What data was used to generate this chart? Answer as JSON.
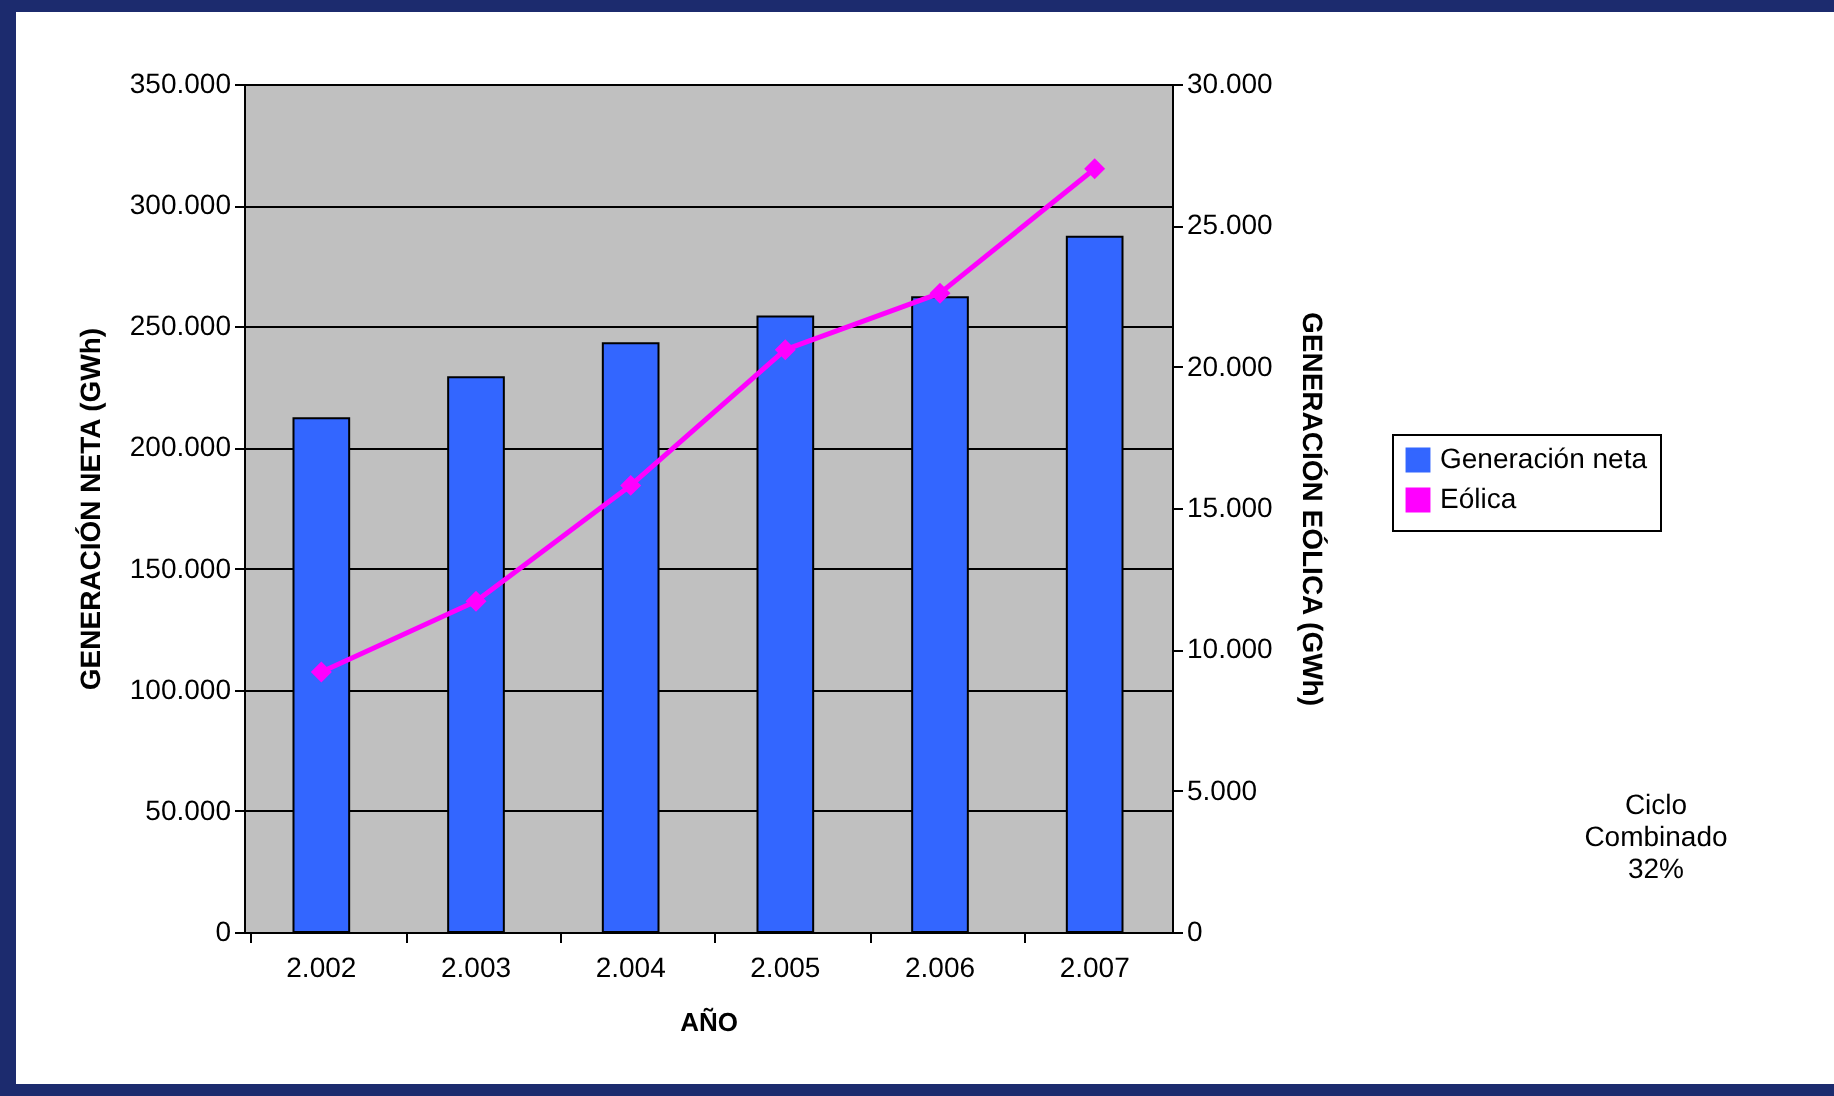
{
  "chart_data": {
    "type": "bar",
    "categories": [
      "2.002",
      "2.003",
      "2.004",
      "2.005",
      "2.006",
      "2.007"
    ],
    "xlabel": "AÑO",
    "ylabel": "GENERACIÓN NETA (GWh)",
    "y2label": "GENERACIÓN EÓLICA (GWh)",
    "series": [
      {
        "name": "Generación neta",
        "color": "#3366ff",
        "values": [
          212000,
          229000,
          243000,
          254000,
          262000,
          287000
        ]
      },
      {
        "name": "Eólica",
        "type": "line",
        "axis": "y2",
        "color": "#ff00ff",
        "values": [
          9200,
          11700,
          15800,
          20600,
          22600,
          27000
        ]
      }
    ],
    "ylim": [
      0,
      350000
    ],
    "yticks": [
      {
        "value": 0,
        "label": "0"
      },
      {
        "value": 50000,
        "label": "50.000"
      },
      {
        "value": 100000,
        "label": "100.000"
      },
      {
        "value": 150000,
        "label": "150.000"
      },
      {
        "value": 200000,
        "label": "200.000"
      },
      {
        "value": 250000,
        "label": "250.000"
      },
      {
        "value": 300000,
        "label": "300.000"
      },
      {
        "value": 350000,
        "label": "350.000"
      }
    ],
    "y2lim": [
      0,
      30000
    ],
    "y2ticks": [
      {
        "value": 0,
        "label": "0"
      },
      {
        "value": 5000,
        "label": "5.000"
      },
      {
        "value": 10000,
        "label": "10.000"
      },
      {
        "value": 15000,
        "label": "15.000"
      },
      {
        "value": 20000,
        "label": "20.000"
      },
      {
        "value": 25000,
        "label": "25.000"
      },
      {
        "value": 30000,
        "label": "30.000"
      }
    ],
    "grid": "y",
    "legend": "right",
    "marker": "diamond",
    "annotations": [
      "Ciclo\nCombinado\n32%"
    ]
  }
}
